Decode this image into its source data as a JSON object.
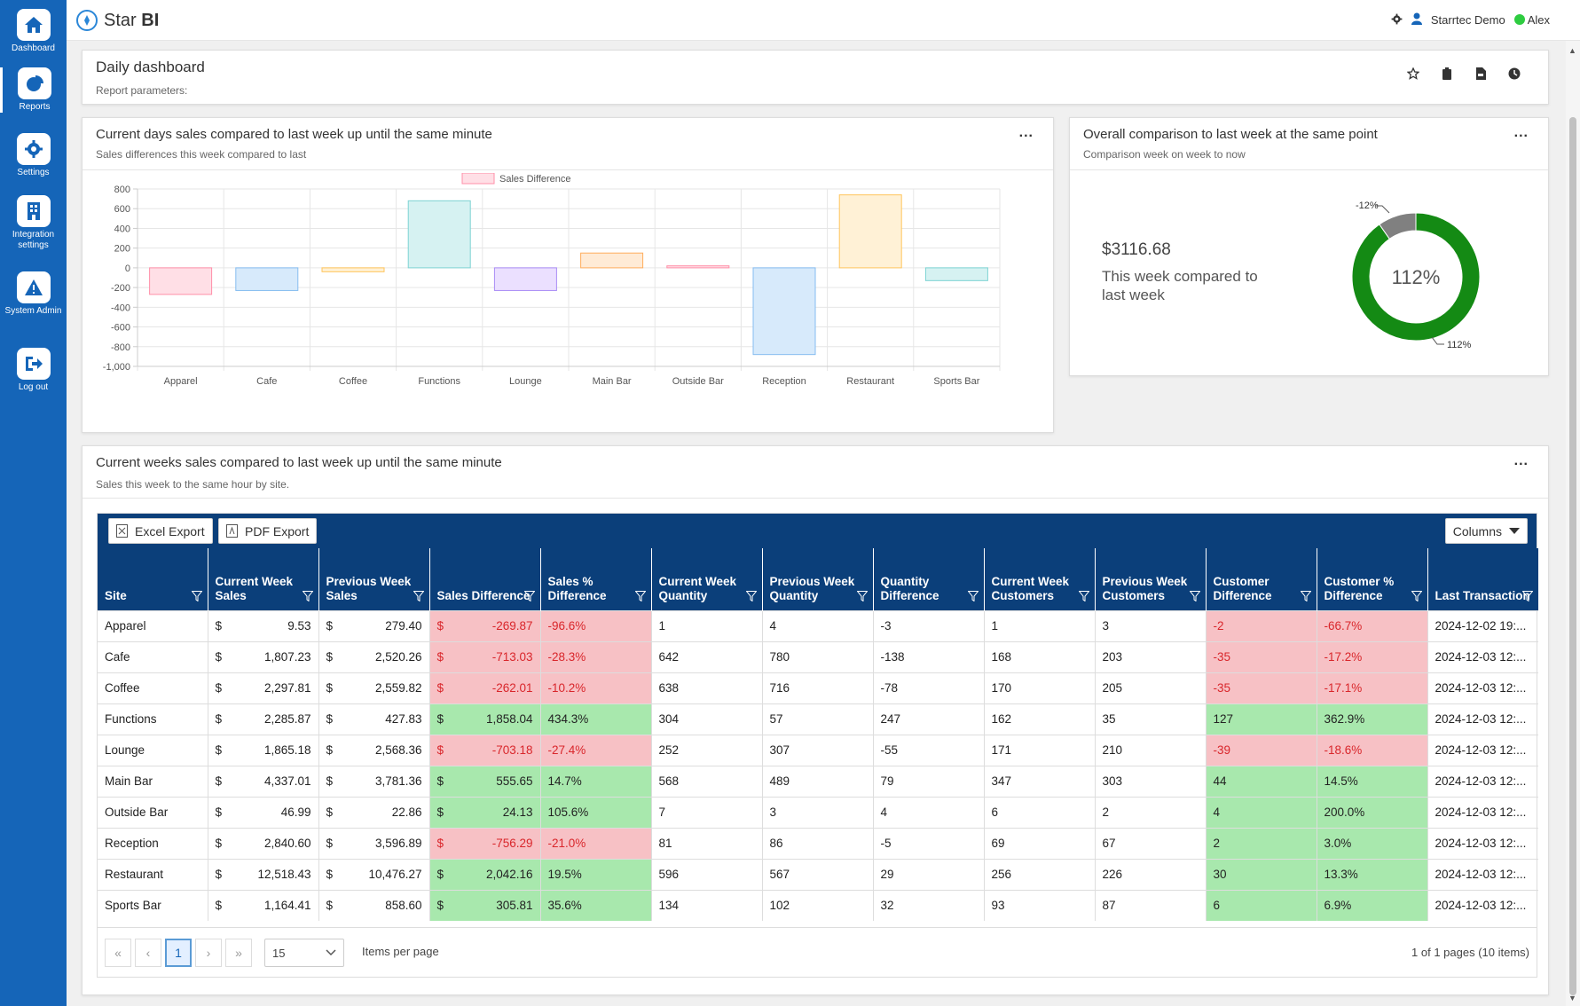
{
  "app": {
    "name_light": "Star",
    "name_bold": "BI",
    "org": "Starrtec Demo",
    "user": "Alex"
  },
  "sidebar": {
    "items": [
      {
        "label": "Dashboard",
        "icon": "home-icon"
      },
      {
        "label": "Reports",
        "icon": "pie-chart-icon"
      },
      {
        "label": "Settings",
        "icon": "gear-icon"
      },
      {
        "label": "Integration settings",
        "icon": "building-icon"
      },
      {
        "label": "System Admin",
        "icon": "warning-icon"
      },
      {
        "label": "Log out",
        "icon": "logout-icon"
      }
    ]
  },
  "header": {
    "title": "Daily dashboard",
    "params_label": "Report parameters:"
  },
  "bar_panel": {
    "title": "Current days sales compared to last week up until the same minute",
    "subtitle": "Sales differences this week compared to last",
    "menu": "..."
  },
  "donut_panel": {
    "title": "Overall comparison to last week at the same point",
    "subtitle": "Comparison week on week to now",
    "menu": "...",
    "amount": "$3116.68",
    "caption": "This week compared to last week",
    "center_label": "112%",
    "label_top": "-12%",
    "label_bottom": "112%",
    "percent": 112,
    "colors": {
      "main": "#148a14",
      "remainder": "#808080"
    }
  },
  "chart_data": {
    "type": "bar",
    "title": "",
    "xlabel": "",
    "ylabel": "",
    "legend": "Sales Difference",
    "categories": [
      "Apparel",
      "Cafe",
      "Coffee",
      "Functions",
      "Lounge",
      "Main Bar",
      "Outside Bar",
      "Reception",
      "Restaurant",
      "Sports Bar"
    ],
    "values": [
      -269.87,
      -230,
      -40,
      680,
      -230,
      150,
      20,
      -880,
      740,
      -130
    ],
    "ylim": [
      -1000,
      800
    ],
    "yticks": [
      "800",
      "600",
      "400",
      "200",
      "0",
      "-200",
      "-400",
      "-600",
      "-800",
      "-1,000"
    ],
    "grid": true,
    "legend_position": "top",
    "colors": [
      {
        "fill": "#ffdfe6",
        "stroke": "#ff8fa8"
      },
      {
        "fill": "#d7eafb",
        "stroke": "#86bdf0"
      },
      {
        "fill": "#fff1d6",
        "stroke": "#ffc55c"
      },
      {
        "fill": "#d6f2f2",
        "stroke": "#7dd3d3"
      },
      {
        "fill": "#ebe0ff",
        "stroke": "#a98cf5"
      },
      {
        "fill": "#ffebd6",
        "stroke": "#ffad5c"
      },
      {
        "fill": "#ffdfe6",
        "stroke": "#ff8fa8"
      },
      {
        "fill": "#d7eafb",
        "stroke": "#86bdf0"
      },
      {
        "fill": "#fff1d6",
        "stroke": "#ffc55c"
      },
      {
        "fill": "#d6f2f2",
        "stroke": "#7dd3d3"
      }
    ]
  },
  "week_panel": {
    "title": "Current weeks sales compared to last week up until the same minute",
    "subtitle": "Sales this week to the same hour by site.",
    "menu": "..."
  },
  "grid": {
    "excel_label": "Excel Export",
    "pdf_label": "PDF Export",
    "columns_label": "Columns",
    "headers": [
      "Site",
      "Current Week Sales",
      "Previous Week Sales",
      "Sales Difference",
      "Sales % Difference",
      "Current Week Quantity",
      "Previous Week Quantity",
      "Quantity Difference",
      "Current Week Customers",
      "Previous Week Customers",
      "Customer Difference",
      "Customer % Difference",
      "Last Transaction"
    ],
    "currency": "$",
    "rows": [
      {
        "site": "Apparel",
        "cur": "9.53",
        "prev": "279.40",
        "diff": "-269.87",
        "pct": "-96.6%",
        "cq": "1",
        "pq": "4",
        "qd": "-3",
        "cc": "1",
        "pc": "3",
        "cd": "-2",
        "cpct": "-66.7%",
        "last": "2024-12-02 19:...",
        "neg": true,
        "cneg": true
      },
      {
        "site": "Cafe",
        "cur": "1,807.23",
        "prev": "2,520.26",
        "diff": "-713.03",
        "pct": "-28.3%",
        "cq": "642",
        "pq": "780",
        "qd": "-138",
        "cc": "168",
        "pc": "203",
        "cd": "-35",
        "cpct": "-17.2%",
        "last": "2024-12-03 12:...",
        "neg": true,
        "cneg": true
      },
      {
        "site": "Coffee",
        "cur": "2,297.81",
        "prev": "2,559.82",
        "diff": "-262.01",
        "pct": "-10.2%",
        "cq": "638",
        "pq": "716",
        "qd": "-78",
        "cc": "170",
        "pc": "205",
        "cd": "-35",
        "cpct": "-17.1%",
        "last": "2024-12-03 12:...",
        "neg": true,
        "cneg": true
      },
      {
        "site": "Functions",
        "cur": "2,285.87",
        "prev": "427.83",
        "diff": "1,858.04",
        "pct": "434.3%",
        "cq": "304",
        "pq": "57",
        "qd": "247",
        "cc": "162",
        "pc": "35",
        "cd": "127",
        "cpct": "362.9%",
        "last": "2024-12-03 12:...",
        "neg": false,
        "cneg": false
      },
      {
        "site": "Lounge",
        "cur": "1,865.18",
        "prev": "2,568.36",
        "diff": "-703.18",
        "pct": "-27.4%",
        "cq": "252",
        "pq": "307",
        "qd": "-55",
        "cc": "171",
        "pc": "210",
        "cd": "-39",
        "cpct": "-18.6%",
        "last": "2024-12-03 12:...",
        "neg": true,
        "cneg": true
      },
      {
        "site": "Main Bar",
        "cur": "4,337.01",
        "prev": "3,781.36",
        "diff": "555.65",
        "pct": "14.7%",
        "cq": "568",
        "pq": "489",
        "qd": "79",
        "cc": "347",
        "pc": "303",
        "cd": "44",
        "cpct": "14.5%",
        "last": "2024-12-03 12:...",
        "neg": false,
        "cneg": false
      },
      {
        "site": "Outside Bar",
        "cur": "46.99",
        "prev": "22.86",
        "diff": "24.13",
        "pct": "105.6%",
        "cq": "7",
        "pq": "3",
        "qd": "4",
        "cc": "6",
        "pc": "2",
        "cd": "4",
        "cpct": "200.0%",
        "last": "2024-12-03 12:...",
        "neg": false,
        "cneg": false
      },
      {
        "site": "Reception",
        "cur": "2,840.60",
        "prev": "3,596.89",
        "diff": "-756.29",
        "pct": "-21.0%",
        "cq": "81",
        "pq": "86",
        "qd": "-5",
        "cc": "69",
        "pc": "67",
        "cd": "2",
        "cpct": "3.0%",
        "last": "2024-12-03 12:...",
        "neg": true,
        "cneg": false
      },
      {
        "site": "Restaurant",
        "cur": "12,518.43",
        "prev": "10,476.27",
        "diff": "2,042.16",
        "pct": "19.5%",
        "cq": "596",
        "pq": "567",
        "qd": "29",
        "cc": "256",
        "pc": "226",
        "cd": "30",
        "cpct": "13.3%",
        "last": "2024-12-03 12:...",
        "neg": false,
        "cneg": false
      },
      {
        "site": "Sports Bar",
        "cur": "1,164.41",
        "prev": "858.60",
        "diff": "305.81",
        "pct": "35.6%",
        "cq": "134",
        "pq": "102",
        "qd": "32",
        "cc": "93",
        "pc": "87",
        "cd": "6",
        "cpct": "6.9%",
        "last": "2024-12-03 12:...",
        "neg": false,
        "cneg": false
      }
    ],
    "pager": {
      "first": "«",
      "prev": "‹",
      "current": "1",
      "next": "›",
      "last": "»",
      "page_size": "15",
      "items_label": "Items per page",
      "summary": "1 of 1 pages (10 items)"
    }
  }
}
